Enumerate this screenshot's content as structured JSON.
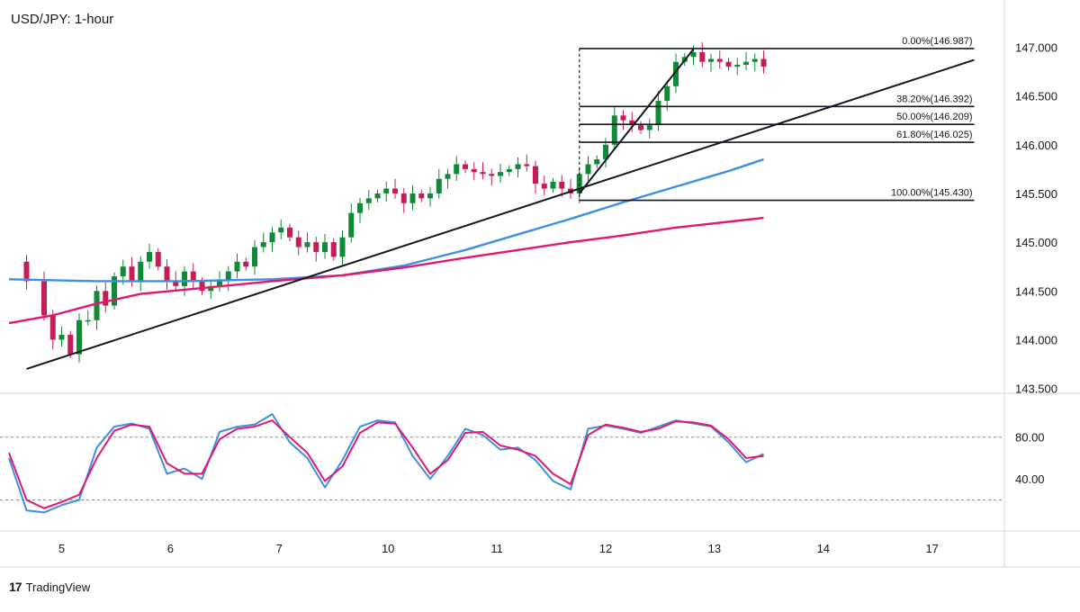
{
  "chart_data": {
    "type": "candlestick",
    "title": "USD/JPY: 1-hour",
    "x_ticks": [
      "5",
      "6",
      "7",
      "10",
      "11",
      "12",
      "13",
      "14",
      "17"
    ],
    "price_axis": {
      "ticks": [
        "147.000",
        "146.500",
        "146.000",
        "145.500",
        "145.000",
        "144.500",
        "144.000",
        "143.500"
      ],
      "range": [
        143.45,
        147.3
      ]
    },
    "osc_axis": {
      "ticks": [
        "80.00",
        "40.00"
      ],
      "range": [
        -8,
        115
      ],
      "overbought": 80,
      "oversold": 20
    },
    "price_path": [
      [
        0,
        144.8
      ],
      [
        2,
        144.6
      ],
      [
        4,
        144.25
      ],
      [
        5,
        144.0
      ],
      [
        6,
        144.05
      ],
      [
        7,
        143.85
      ],
      [
        8,
        144.2
      ],
      [
        9,
        144.2
      ],
      [
        10,
        144.5
      ],
      [
        11,
        144.35
      ],
      [
        12,
        144.65
      ],
      [
        13,
        144.75
      ],
      [
        14,
        144.6
      ],
      [
        15,
        144.8
      ],
      [
        16,
        144.9
      ],
      [
        17,
        144.75
      ],
      [
        18,
        144.6
      ],
      [
        19,
        144.55
      ],
      [
        20,
        144.7
      ],
      [
        21,
        144.6
      ],
      [
        22,
        144.5
      ],
      [
        23,
        144.55
      ],
      [
        24,
        144.6
      ],
      [
        25,
        144.7
      ],
      [
        26,
        144.8
      ],
      [
        27,
        144.75
      ],
      [
        28,
        144.95
      ],
      [
        29,
        145.0
      ],
      [
        30,
        145.1
      ],
      [
        31,
        145.15
      ],
      [
        32,
        145.05
      ],
      [
        33,
        144.95
      ],
      [
        34,
        145.0
      ],
      [
        35,
        144.9
      ],
      [
        36,
        145.0
      ],
      [
        37,
        144.85
      ],
      [
        38,
        145.05
      ],
      [
        39,
        145.3
      ],
      [
        40,
        145.4
      ],
      [
        41,
        145.45
      ],
      [
        42,
        145.5
      ],
      [
        43,
        145.55
      ],
      [
        44,
        145.5
      ],
      [
        45,
        145.4
      ],
      [
        46,
        145.5
      ],
      [
        47,
        145.45
      ],
      [
        48,
        145.5
      ],
      [
        49,
        145.65
      ],
      [
        50,
        145.7
      ],
      [
        51,
        145.8
      ],
      [
        52,
        145.75
      ],
      [
        53,
        145.72
      ],
      [
        54,
        145.7
      ],
      [
        55,
        145.68
      ],
      [
        56,
        145.72
      ],
      [
        57,
        145.75
      ],
      [
        58,
        145.8
      ],
      [
        59,
        145.78
      ],
      [
        60,
        145.6
      ],
      [
        61,
        145.55
      ],
      [
        62,
        145.62
      ],
      [
        63,
        145.55
      ],
      [
        64,
        145.5
      ],
      [
        65,
        145.7
      ],
      [
        66,
        145.8
      ],
      [
        67,
        145.85
      ],
      [
        68,
        146.0
      ],
      [
        69,
        146.3
      ],
      [
        70,
        146.25
      ],
      [
        71,
        146.2
      ],
      [
        72,
        146.15
      ],
      [
        73,
        146.2
      ],
      [
        74,
        146.45
      ],
      [
        75,
        146.6
      ],
      [
        76,
        146.85
      ],
      [
        77,
        146.9
      ],
      [
        78,
        146.95
      ],
      [
        79,
        146.85
      ],
      [
        80,
        146.88
      ],
      [
        81,
        146.85
      ],
      [
        82,
        146.8
      ],
      [
        83,
        146.82
      ],
      [
        84,
        146.85
      ],
      [
        85,
        146.88
      ],
      [
        86,
        146.8
      ]
    ],
    "moving_averages": [
      {
        "color": "#3c8fe3",
        "points": [
          [
            0,
            144.62
          ],
          [
            10,
            144.6
          ],
          [
            20,
            144.6
          ],
          [
            30,
            144.62
          ],
          [
            38,
            144.66
          ],
          [
            45,
            144.76
          ],
          [
            52,
            144.92
          ],
          [
            58,
            145.08
          ],
          [
            64,
            145.24
          ],
          [
            70,
            145.41
          ],
          [
            76,
            145.57
          ],
          [
            82,
            145.73
          ],
          [
            86,
            145.85
          ]
        ]
      },
      {
        "color": "#e3176e",
        "points": [
          [
            0,
            144.17
          ],
          [
            5,
            144.25
          ],
          [
            10,
            144.37
          ],
          [
            15,
            144.47
          ],
          [
            22,
            144.53
          ],
          [
            30,
            144.6
          ],
          [
            38,
            144.66
          ],
          [
            45,
            144.74
          ],
          [
            52,
            144.84
          ],
          [
            58,
            144.92
          ],
          [
            64,
            145.0
          ],
          [
            70,
            145.07
          ],
          [
            76,
            145.15
          ],
          [
            82,
            145.21
          ],
          [
            86,
            145.25
          ]
        ]
      }
    ],
    "trendlines": [
      {
        "from": [
          2,
          143.7
        ],
        "to": [
          110,
          146.87
        ]
      },
      {
        "from": [
          65,
          145.5
        ],
        "to": [
          78,
          146.98
        ]
      }
    ],
    "fib_levels": [
      {
        "label": "0.00%(146.987)",
        "price": 146.987
      },
      {
        "label": "38.20%(146.392)",
        "price": 146.392
      },
      {
        "label": "50.00%(146.209)",
        "price": 146.209
      },
      {
        "label": "61.80%(146.025)",
        "price": 146.025
      },
      {
        "label": "100.00%(145.430)",
        "price": 145.43
      }
    ],
    "stochastic": [
      {
        "color": "#3c8fe3",
        "points": [
          [
            0,
            60
          ],
          [
            2,
            10
          ],
          [
            4,
            8
          ],
          [
            6,
            15
          ],
          [
            8,
            20
          ],
          [
            10,
            70
          ],
          [
            12,
            90
          ],
          [
            14,
            93
          ],
          [
            16,
            88
          ],
          [
            18,
            45
          ],
          [
            20,
            50
          ],
          [
            22,
            40
          ],
          [
            24,
            85
          ],
          [
            26,
            90
          ],
          [
            28,
            92
          ],
          [
            30,
            102
          ],
          [
            32,
            75
          ],
          [
            34,
            60
          ],
          [
            36,
            32
          ],
          [
            38,
            58
          ],
          [
            40,
            90
          ],
          [
            42,
            96
          ],
          [
            44,
            94
          ],
          [
            46,
            62
          ],
          [
            48,
            40
          ],
          [
            50,
            62
          ],
          [
            52,
            88
          ],
          [
            54,
            82
          ],
          [
            56,
            68
          ],
          [
            58,
            70
          ],
          [
            60,
            58
          ],
          [
            62,
            38
          ],
          [
            64,
            30
          ],
          [
            66,
            88
          ],
          [
            68,
            91
          ],
          [
            70,
            88
          ],
          [
            72,
            84
          ],
          [
            74,
            90
          ],
          [
            76,
            96
          ],
          [
            78,
            93
          ],
          [
            80,
            90
          ],
          [
            82,
            75
          ],
          [
            84,
            56
          ],
          [
            86,
            64
          ]
        ]
      },
      {
        "color": "#e3176e",
        "points": [
          [
            0,
            65
          ],
          [
            2,
            20
          ],
          [
            4,
            12
          ],
          [
            6,
            18
          ],
          [
            8,
            25
          ],
          [
            10,
            60
          ],
          [
            12,
            86
          ],
          [
            14,
            92
          ],
          [
            16,
            90
          ],
          [
            18,
            55
          ],
          [
            20,
            45
          ],
          [
            22,
            45
          ],
          [
            24,
            78
          ],
          [
            26,
            88
          ],
          [
            28,
            90
          ],
          [
            30,
            96
          ],
          [
            32,
            80
          ],
          [
            34,
            65
          ],
          [
            36,
            38
          ],
          [
            38,
            52
          ],
          [
            40,
            84
          ],
          [
            42,
            94
          ],
          [
            44,
            93
          ],
          [
            46,
            70
          ],
          [
            48,
            45
          ],
          [
            50,
            58
          ],
          [
            52,
            84
          ],
          [
            54,
            85
          ],
          [
            56,
            72
          ],
          [
            58,
            68
          ],
          [
            60,
            62
          ],
          [
            62,
            45
          ],
          [
            64,
            35
          ],
          [
            66,
            82
          ],
          [
            68,
            92
          ],
          [
            70,
            89
          ],
          [
            72,
            85
          ],
          [
            74,
            88
          ],
          [
            76,
            95
          ],
          [
            78,
            94
          ],
          [
            80,
            91
          ],
          [
            82,
            78
          ],
          [
            84,
            60
          ],
          [
            86,
            62
          ]
        ]
      }
    ]
  },
  "brand": {
    "mark": "17",
    "name": "TradingView"
  },
  "colors": {
    "up": "#0f8a36",
    "down": "#c61d56",
    "line": "#131722",
    "axis_text": "#131722",
    "grid": "#d7d9de",
    "dotted": "#888888"
  }
}
